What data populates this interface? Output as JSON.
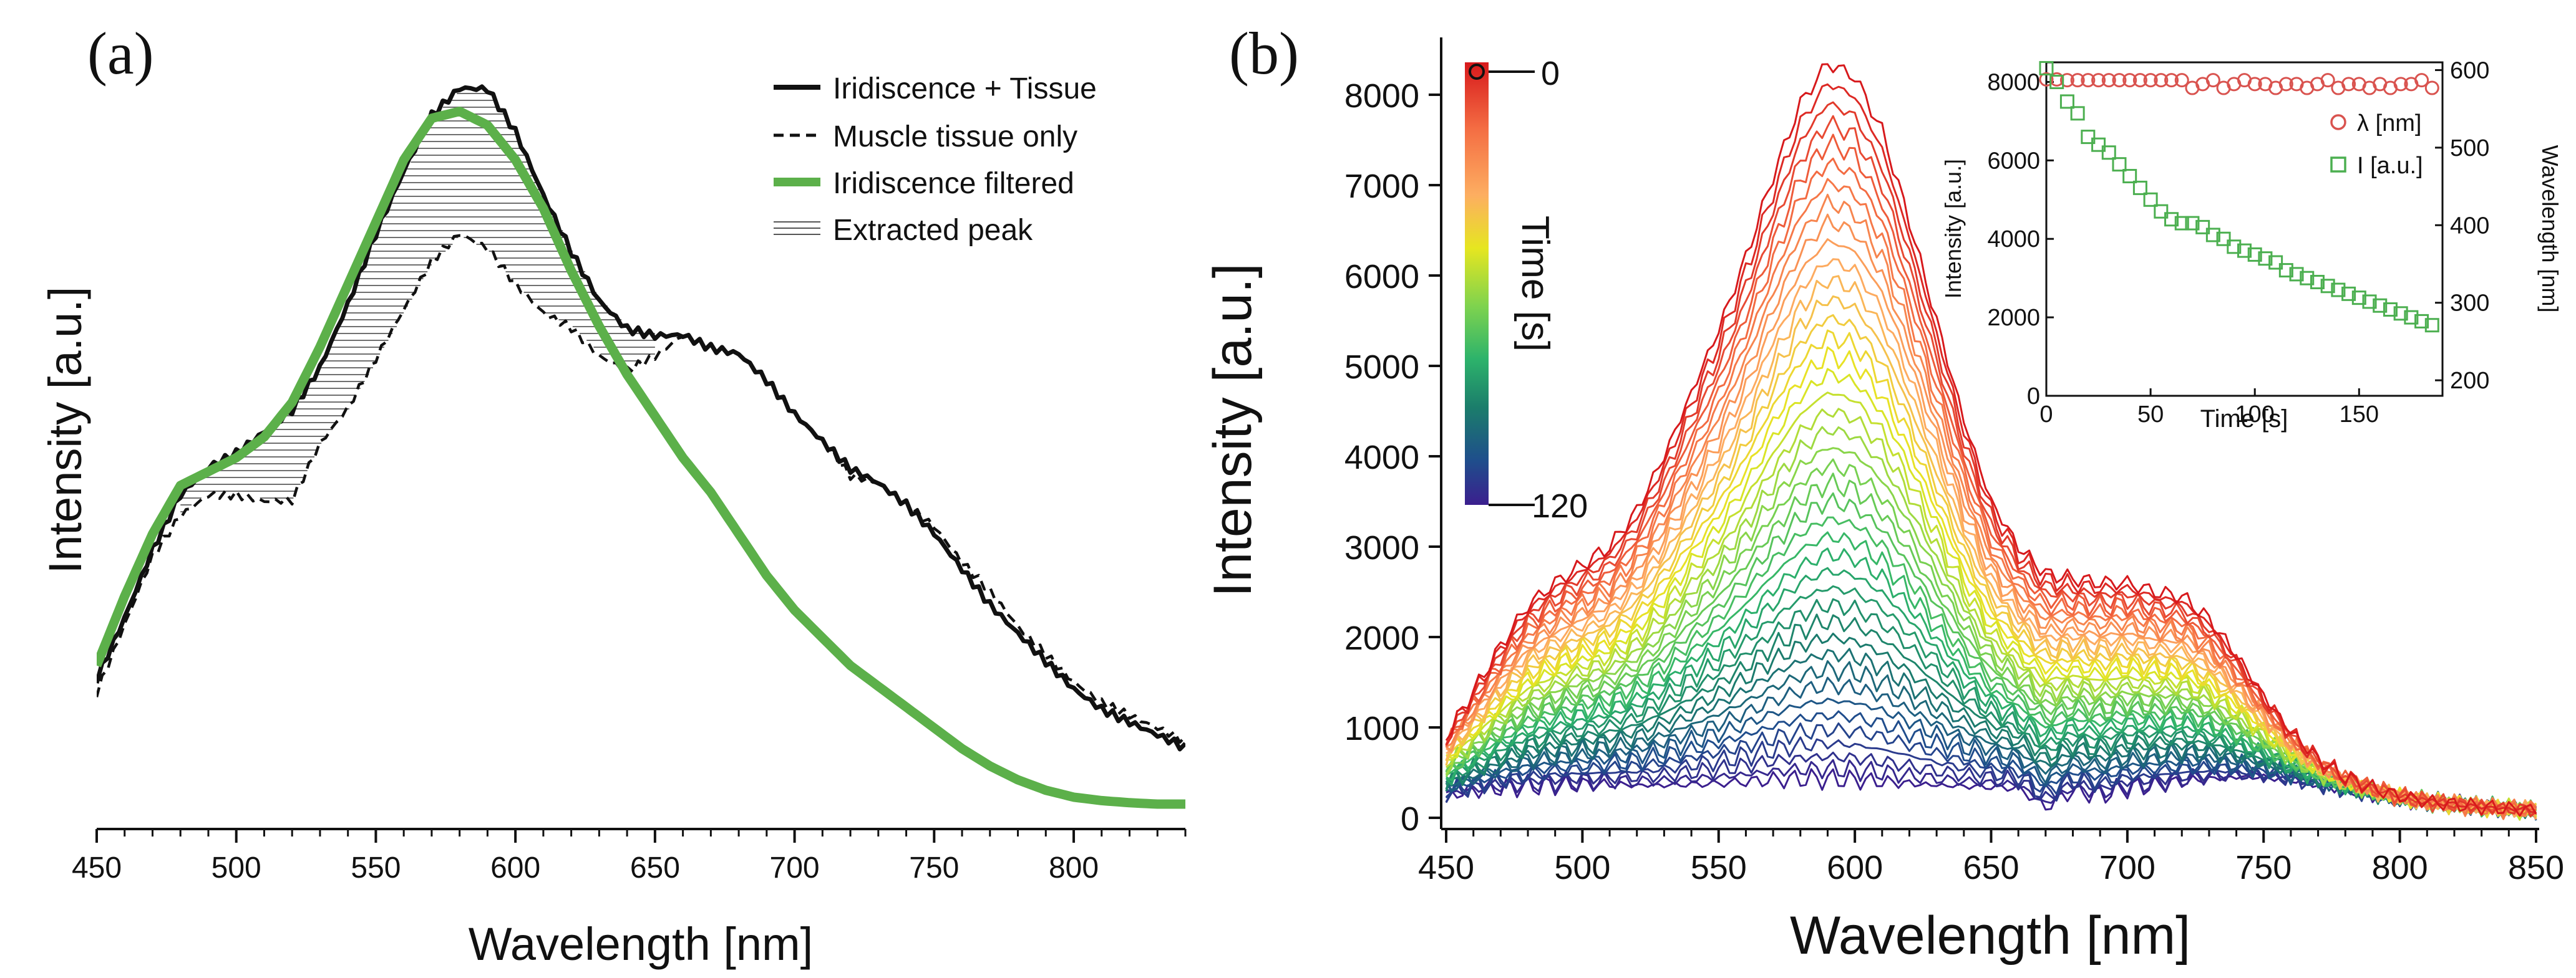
{
  "chart_data": [
    {
      "id": "a",
      "type": "line",
      "panel_label": "(a)",
      "xlabel": "Wavelength [nm]",
      "ylabel": "Intensity [a.u.]",
      "xlim": [
        450,
        840
      ],
      "ylim": [
        0,
        1
      ],
      "xticks": [
        450,
        500,
        550,
        600,
        650,
        700,
        750,
        800
      ],
      "y_ticks_shown": false,
      "legend": [
        "Iridiscence + Tissue",
        "Muscle tissue only",
        "Iridiscence filtered",
        "Extracted peak"
      ],
      "legend_position": "top-right",
      "colors": {
        "combined": "#111111",
        "muscle": "#111111",
        "filtered": "#5cb04a",
        "hatch": "#6f6f6f"
      },
      "series": [
        {
          "name": "Iridiscence + Tissue",
          "style": "solid",
          "x": [
            450,
            460,
            470,
            480,
            490,
            500,
            510,
            520,
            530,
            540,
            550,
            560,
            570,
            580,
            590,
            600,
            610,
            620,
            630,
            640,
            650,
            660,
            670,
            680,
            690,
            700,
            710,
            720,
            730,
            740,
            750,
            760,
            770,
            780,
            790,
            800,
            810,
            820,
            830,
            840
          ],
          "y": [
            0.18,
            0.27,
            0.37,
            0.45,
            0.49,
            0.51,
            0.54,
            0.57,
            0.63,
            0.72,
            0.82,
            0.91,
            0.99,
            1.03,
            1.03,
            0.97,
            0.88,
            0.8,
            0.73,
            0.69,
            0.68,
            0.68,
            0.66,
            0.65,
            0.61,
            0.56,
            0.52,
            0.48,
            0.46,
            0.43,
            0.39,
            0.34,
            0.29,
            0.25,
            0.21,
            0.17,
            0.14,
            0.12,
            0.1,
            0.08
          ]
        },
        {
          "name": "Muscle tissue only",
          "style": "dashed",
          "x": [
            450,
            460,
            470,
            480,
            490,
            500,
            510,
            520,
            530,
            540,
            550,
            560,
            570,
            580,
            590,
            600,
            610,
            620,
            630,
            640,
            650,
            660,
            670,
            680,
            690,
            700,
            710,
            720,
            730,
            740,
            750,
            760,
            770,
            780,
            790,
            800,
            810,
            820,
            830,
            840
          ],
          "y": [
            0.16,
            0.26,
            0.36,
            0.42,
            0.45,
            0.45,
            0.44,
            0.44,
            0.52,
            0.57,
            0.64,
            0.71,
            0.78,
            0.82,
            0.8,
            0.75,
            0.71,
            0.69,
            0.65,
            0.63,
            0.65,
            0.68,
            0.66,
            0.65,
            0.61,
            0.56,
            0.52,
            0.47,
            0.46,
            0.43,
            0.4,
            0.35,
            0.31,
            0.26,
            0.22,
            0.18,
            0.15,
            0.13,
            0.11,
            0.09
          ]
        },
        {
          "name": "Iridiscence filtered",
          "style": "thick-green",
          "x": [
            450,
            460,
            470,
            480,
            490,
            500,
            510,
            520,
            530,
            540,
            550,
            560,
            570,
            580,
            590,
            600,
            610,
            620,
            630,
            640,
            650,
            660,
            670,
            680,
            690,
            700,
            710,
            720,
            730,
            740,
            750,
            760,
            770,
            780,
            790,
            800,
            810,
            820,
            830,
            840
          ],
          "y": [
            0.2,
            0.3,
            0.39,
            0.46,
            0.48,
            0.5,
            0.53,
            0.58,
            0.66,
            0.75,
            0.84,
            0.93,
            0.99,
            1.0,
            0.98,
            0.93,
            0.86,
            0.77,
            0.69,
            0.62,
            0.56,
            0.5,
            0.45,
            0.39,
            0.33,
            0.28,
            0.24,
            0.2,
            0.17,
            0.14,
            0.11,
            0.08,
            0.055,
            0.035,
            0.02,
            0.01,
            0.005,
            0.002,
            0.0,
            0.0
          ]
        }
      ]
    },
    {
      "id": "b",
      "type": "line",
      "panel_label": "(b)",
      "xlabel": "Wavelength [nm]",
      "ylabel": "Intensity [a.u.]",
      "xlim": [
        450,
        850
      ],
      "ylim": [
        0,
        8500
      ],
      "xticks": [
        450,
        500,
        550,
        600,
        650,
        700,
        750,
        800,
        850
      ],
      "yticks": [
        0,
        1000,
        2000,
        3000,
        4000,
        5000,
        6000,
        7000,
        8000
      ],
      "colorbar": {
        "label": "Time [s]",
        "tick_top": "0",
        "tick_bottom": "120",
        "colors": [
          "#d7191c",
          "#f46d43",
          "#fdae61",
          "#e6e620",
          "#7fd34e",
          "#2db36b",
          "#1b7d6b",
          "#1f4e8c",
          "#3b1f8e"
        ]
      },
      "spectra_count": 42,
      "first_spectrum": {
        "x": [
          450,
          460,
          470,
          480,
          490,
          500,
          510,
          520,
          530,
          540,
          550,
          560,
          570,
          580,
          590,
          600,
          610,
          620,
          630,
          640,
          650,
          660,
          670,
          680,
          690,
          700,
          710,
          720,
          730,
          740,
          750,
          760,
          770,
          780,
          790,
          800,
          810,
          820,
          830,
          840,
          850
        ],
        "y": [
          900,
          1400,
          1900,
          2350,
          2600,
          2800,
          3000,
          3400,
          4000,
          4700,
          5400,
          6200,
          7100,
          7900,
          8350,
          8200,
          7600,
          6600,
          5500,
          4400,
          3500,
          3000,
          2700,
          2650,
          2600,
          2600,
          2500,
          2450,
          2200,
          1800,
          1350,
          950,
          650,
          450,
          330,
          240,
          180,
          150,
          120,
          100,
          90
        ]
      },
      "last_spectrum": {
        "x": [
          450,
          460,
          470,
          480,
          490,
          500,
          510,
          520,
          530,
          540,
          550,
          560,
          570,
          580,
          590,
          600,
          610,
          620,
          630,
          640,
          650,
          660,
          670,
          680,
          690,
          700,
          710,
          720,
          730,
          740,
          750,
          760,
          770,
          780,
          790,
          800,
          810,
          820,
          830,
          840,
          850
        ],
        "y": [
          250,
          300,
          330,
          350,
          360,
          370,
          370,
          360,
          360,
          370,
          380,
          400,
          420,
          430,
          430,
          420,
          400,
          380,
          360,
          350,
          340,
          330,
          120,
          300,
          250,
          330,
          360,
          400,
          430,
          450,
          450,
          420,
          370,
          320,
          270,
          220,
          180,
          150,
          120,
          100,
          80
        ]
      },
      "inset": {
        "type": "scatter",
        "xlabel": "Time [s]",
        "ylabel_left": "Intensity [a.u.]",
        "ylabel_right": "Wavelength [nm]",
        "xlim": [
          0,
          190
        ],
        "ylim_left": [
          0,
          8500
        ],
        "ylim_right": [
          180,
          610
        ],
        "xticks": [
          0,
          50,
          100,
          150
        ],
        "yticks_left": [
          0,
          2000,
          4000,
          6000,
          8000
        ],
        "yticks_right": [
          200,
          300,
          400,
          500,
          600
        ],
        "legend": [
          "λ [nm]",
          "I [a.u.]"
        ],
        "legend_position": "right",
        "series": [
          {
            "name": "λ [nm]",
            "marker": "circle",
            "color": "#d9534f",
            "axis": "right",
            "x": [
              0,
              5,
              10,
              15,
              20,
              25,
              30,
              35,
              40,
              45,
              50,
              55,
              60,
              65,
              70,
              75,
              80,
              85,
              90,
              95,
              100,
              105,
              110,
              115,
              120,
              125,
              130,
              135,
              140,
              145,
              150,
              155,
              160,
              165,
              170,
              175,
              180,
              185
            ],
            "y": [
              588,
              588,
              587,
              587,
              587,
              587,
              587,
              587,
              587,
              587,
              587,
              587,
              587,
              587,
              577,
              582,
              587,
              577,
              582,
              587,
              582,
              582,
              577,
              582,
              582,
              577,
              582,
              587,
              577,
              582,
              582,
              577,
              582,
              577,
              582,
              582,
              587,
              577
            ]
          },
          {
            "name": "I [a.u.]",
            "marker": "square",
            "color": "#4caf50",
            "axis": "left",
            "x": [
              0,
              5,
              10,
              15,
              20,
              25,
              30,
              35,
              40,
              45,
              50,
              55,
              60,
              65,
              70,
              75,
              80,
              85,
              90,
              95,
              100,
              105,
              110,
              115,
              120,
              125,
              130,
              135,
              140,
              145,
              150,
              155,
              160,
              165,
              170,
              175,
              180,
              185
            ],
            "y": [
              8350,
              8000,
              7500,
              7200,
              6600,
              6400,
              6200,
              5900,
              5600,
              5300,
              5000,
              4700,
              4500,
              4400,
              4400,
              4300,
              4100,
              4000,
              3800,
              3700,
              3600,
              3500,
              3400,
              3200,
              3100,
              3000,
              2900,
              2800,
              2700,
              2600,
              2500,
              2400,
              2300,
              2200,
              2100,
              2000,
              1900,
              1800
            ]
          }
        ]
      }
    }
  ]
}
